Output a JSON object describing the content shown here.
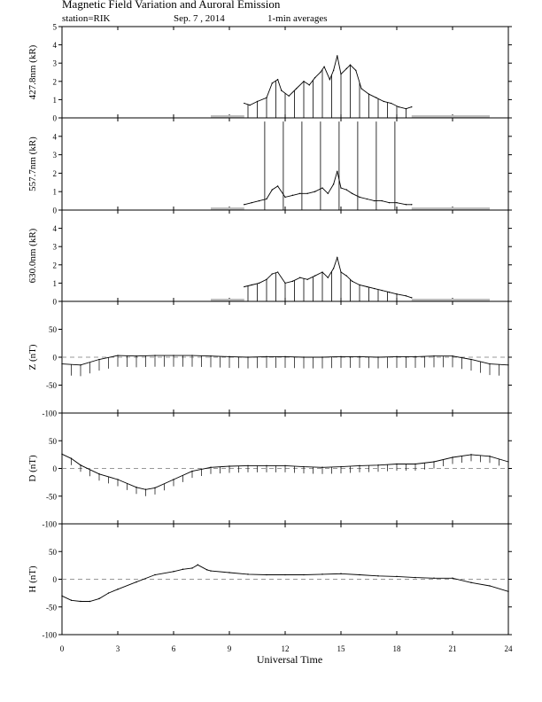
{
  "header": {
    "title": "Magnetic Field Variation and Auroral Emission",
    "station": "station=RIK",
    "date": "Sep. 7  , 2014",
    "averaging": "1-min averages"
  },
  "chart_data": [
    {
      "type": "line",
      "ylabel": "427.8nm (kR)",
      "ylim": [
        0,
        5
      ],
      "yticks": [
        0,
        1,
        2,
        3,
        4,
        5
      ],
      "x": [
        9.8,
        10.1,
        10.5,
        11.0,
        11.3,
        11.6,
        11.8,
        12.2,
        12.6,
        13.0,
        13.3,
        13.6,
        13.9,
        14.1,
        14.4,
        14.6,
        14.8,
        15.0,
        15.3,
        15.5,
        15.8,
        16.1,
        16.5,
        16.9,
        17.3,
        17.7,
        18.1,
        18.5,
        18.8
      ],
      "values": [
        0.8,
        0.7,
        0.9,
        1.1,
        1.9,
        2.1,
        1.5,
        1.2,
        1.6,
        2.0,
        1.8,
        2.2,
        2.5,
        2.8,
        2.1,
        2.6,
        3.4,
        2.4,
        2.7,
        2.9,
        2.6,
        1.6,
        1.3,
        1.1,
        0.9,
        0.8,
        0.6,
        0.5,
        0.6
      ],
      "spikes": [
        10.0,
        10.5,
        11.0,
        11.5,
        12.0,
        12.5,
        13.0,
        13.5,
        14.0,
        14.5,
        15.0,
        15.5,
        16.0,
        16.5,
        17.0,
        17.5,
        18.0,
        18.5
      ],
      "baseline_segments": [
        [
          8.0,
          9.8
        ],
        [
          18.8,
          23.0
        ]
      ]
    },
    {
      "type": "line",
      "ylabel": "557.7nm (kR)",
      "ylim": [
        0,
        5
      ],
      "yticks": [
        0,
        1,
        2,
        3,
        4
      ],
      "x": [
        9.8,
        10.2,
        10.6,
        11.0,
        11.3,
        11.6,
        12.0,
        12.4,
        12.8,
        13.2,
        13.6,
        14.0,
        14.3,
        14.6,
        14.8,
        15.0,
        15.3,
        15.6,
        16.0,
        16.4,
        16.8,
        17.2,
        17.6,
        18.0,
        18.5,
        18.8
      ],
      "values": [
        0.3,
        0.4,
        0.5,
        0.6,
        1.1,
        1.3,
        0.7,
        0.8,
        0.9,
        0.9,
        1.0,
        1.2,
        0.9,
        1.4,
        2.1,
        1.2,
        1.1,
        0.9,
        0.7,
        0.6,
        0.5,
        0.5,
        0.4,
        0.4,
        0.3,
        0.3
      ],
      "spikes": [
        10.9,
        11.9,
        12.9,
        13.9,
        14.9,
        15.9,
        16.9,
        17.9
      ],
      "spike_top": 4.8,
      "baseline_segments": [
        [
          8.0,
          9.8
        ],
        [
          18.8,
          23.0
        ]
      ]
    },
    {
      "type": "line",
      "ylabel": "630.0nm (kR)",
      "ylim": [
        0,
        5
      ],
      "yticks": [
        0,
        1,
        2,
        3,
        4
      ],
      "x": [
        9.8,
        10.2,
        10.6,
        11.0,
        11.3,
        11.6,
        12.0,
        12.4,
        12.8,
        13.2,
        13.6,
        14.0,
        14.3,
        14.6,
        14.8,
        15.0,
        15.3,
        15.6,
        16.0,
        16.4,
        16.8,
        17.2,
        17.6,
        18.0,
        18.5,
        18.8
      ],
      "values": [
        0.8,
        0.9,
        1.0,
        1.2,
        1.5,
        1.6,
        1.0,
        1.1,
        1.3,
        1.2,
        1.4,
        1.6,
        1.3,
        1.8,
        2.4,
        1.6,
        1.4,
        1.1,
        0.9,
        0.8,
        0.7,
        0.6,
        0.5,
        0.4,
        0.3,
        0.2
      ],
      "spikes": [
        10.0,
        10.5,
        11.0,
        11.5,
        12.0,
        12.5,
        13.0,
        13.5,
        14.0,
        14.5,
        15.0,
        15.5,
        16.0,
        16.5,
        17.0,
        17.5,
        18.0
      ],
      "baseline_segments": [
        [
          8.0,
          9.8
        ],
        [
          18.8,
          23.0
        ]
      ]
    },
    {
      "type": "line",
      "ylabel": "Z (nT)",
      "ylim": [
        -100,
        100
      ],
      "yticks": [
        -100,
        -50,
        0,
        50
      ],
      "dashed_zero": true,
      "x": [
        0,
        1,
        2,
        3,
        4,
        5,
        6,
        7,
        8,
        9,
        10,
        11,
        12,
        13,
        14,
        15,
        16,
        17,
        18,
        19,
        20,
        21,
        22,
        23,
        24
      ],
      "values": [
        -12,
        -14,
        -4,
        3,
        2,
        3,
        3,
        3,
        2,
        1,
        0,
        1,
        1,
        0,
        0,
        1,
        1,
        0,
        1,
        1,
        2,
        2,
        -4,
        -12,
        -14
      ],
      "spike_interval": 0.5,
      "spike_depth": -20
    },
    {
      "type": "line",
      "ylabel": "D (nT)",
      "ylim": [
        -100,
        100
      ],
      "yticks": [
        -100,
        -50,
        0,
        50
      ],
      "dashed_zero": true,
      "x": [
        0,
        0.5,
        1,
        2,
        3,
        4,
        4.5,
        5,
        6,
        7,
        8,
        9,
        10,
        11,
        12,
        13,
        14,
        15,
        16,
        17,
        18,
        19,
        20,
        21,
        22,
        23,
        24
      ],
      "values": [
        26,
        18,
        6,
        -10,
        -20,
        -34,
        -38,
        -35,
        -20,
        -5,
        2,
        4,
        5,
        5,
        5,
        3,
        2,
        3,
        5,
        6,
        8,
        8,
        12,
        20,
        25,
        22,
        12
      ],
      "spike_interval": 0.5,
      "spike_depth": -12
    },
    {
      "type": "line",
      "ylabel": "H (nT)",
      "ylim": [
        -100,
        100
      ],
      "yticks": [
        -100,
        -50,
        0,
        50
      ],
      "dashed_zero": true,
      "x": [
        0,
        0.5,
        1,
        1.5,
        2,
        2.5,
        3,
        4,
        5,
        6,
        6.5,
        7,
        7.3,
        7.8,
        8,
        9,
        10,
        11,
        12,
        13,
        14,
        15,
        16,
        17,
        18,
        19,
        20,
        21,
        22,
        23,
        24
      ],
      "values": [
        -30,
        -38,
        -40,
        -40,
        -35,
        -25,
        -18,
        -5,
        8,
        14,
        18,
        20,
        26,
        17,
        15,
        12,
        9,
        8,
        8,
        8,
        9,
        10,
        8,
        6,
        5,
        3,
        2,
        2,
        -6,
        -12,
        -22
      ]
    }
  ],
  "xaxis": {
    "xlim": [
      0,
      24
    ],
    "ticks": [
      0,
      3,
      6,
      9,
      12,
      15,
      18,
      21,
      24
    ],
    "tick_labels": [
      "0",
      "3",
      "6",
      "9",
      "12",
      "15",
      "18",
      "21",
      "24"
    ],
    "label": "Universal Time"
  }
}
